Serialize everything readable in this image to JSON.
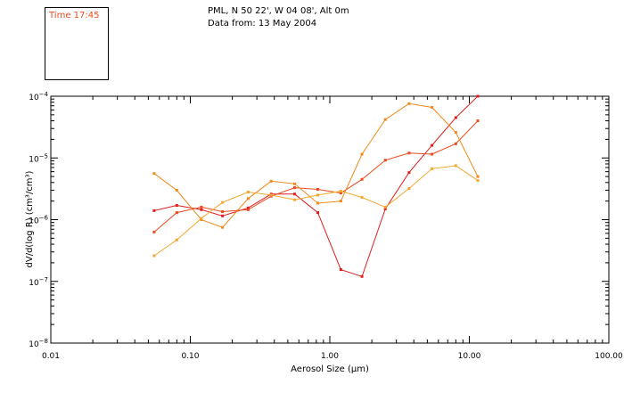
{
  "time_box": {
    "label": "Time 17:45",
    "color": "#e84a1a"
  },
  "header": {
    "line1": "PML, N 50 22', W 04 08', Alt 0m",
    "line2": "Data from: 13 May 2004"
  },
  "chart_data": {
    "type": "line",
    "xlabel": "Aerosol Size (μm)",
    "ylabel": "dV/d(log R)  (cm³/cm³)",
    "x_scale": "log",
    "y_scale": "log",
    "xlim": [
      0.01,
      100
    ],
    "ylim": [
      1e-08,
      0.0001
    ],
    "grid": false,
    "x_ticks": [
      {
        "value": 0.01,
        "label": "0.01"
      },
      {
        "value": 0.1,
        "label": "0.10"
      },
      {
        "value": 1,
        "label": "1.00"
      },
      {
        "value": 10,
        "label": "10.00"
      },
      {
        "value": 100,
        "label": "100.00"
      }
    ],
    "y_ticks": [
      {
        "value": 1e-08,
        "base": "10",
        "exp": "−8"
      },
      {
        "value": 1e-07,
        "base": "10",
        "exp": "−7"
      },
      {
        "value": 1e-06,
        "base": "10",
        "exp": "−6"
      },
      {
        "value": 1e-05,
        "base": "10",
        "exp": "−5"
      },
      {
        "value": 0.0001,
        "base": "10",
        "exp": "−4"
      }
    ],
    "series": [
      {
        "color": "#e01e1e",
        "points": [
          [
            0.055,
            1.4e-06
          ],
          [
            0.08,
            1.7e-06
          ],
          [
            0.12,
            1.45e-06
          ],
          [
            0.17,
            1.15e-06
          ],
          [
            0.26,
            1.55e-06
          ],
          [
            0.38,
            2.6e-06
          ],
          [
            0.56,
            2.6e-06
          ],
          [
            0.82,
            1.3e-06
          ],
          [
            1.2,
            1.55e-07
          ],
          [
            1.7,
            1.2e-07
          ],
          [
            2.5,
            1.5e-06
          ],
          [
            3.7,
            5.8e-06
          ],
          [
            5.4,
            1.6e-05
          ],
          [
            8,
            4.5e-05
          ],
          [
            11.5,
            0.0001
          ]
        ]
      },
      {
        "color": "#ec4a1c",
        "points": [
          [
            0.055,
            6.3e-07
          ],
          [
            0.08,
            1.3e-06
          ],
          [
            0.12,
            1.6e-06
          ],
          [
            0.17,
            1.35e-06
          ],
          [
            0.26,
            1.45e-06
          ],
          [
            0.38,
            2.4e-06
          ],
          [
            0.56,
            3.3e-06
          ],
          [
            0.82,
            3.1e-06
          ],
          [
            1.2,
            2.7e-06
          ],
          [
            1.7,
            4.5e-06
          ],
          [
            2.5,
            9.2e-06
          ],
          [
            3.7,
            1.2e-05
          ],
          [
            5.4,
            1.15e-05
          ],
          [
            8,
            1.7e-05
          ],
          [
            11.5,
            4e-05
          ]
        ]
      },
      {
        "color": "#f08a18",
        "points": [
          [
            0.055,
            5.6e-06
          ],
          [
            0.08,
            3e-06
          ],
          [
            0.12,
            1e-06
          ],
          [
            0.17,
            7.5e-07
          ],
          [
            0.26,
            2.2e-06
          ],
          [
            0.38,
            4.2e-06
          ],
          [
            0.56,
            3.8e-06
          ],
          [
            0.82,
            1.85e-06
          ],
          [
            1.2,
            2e-06
          ],
          [
            1.7,
            1.15e-05
          ],
          [
            2.5,
            4.2e-05
          ],
          [
            3.7,
            7.6e-05
          ],
          [
            5.4,
            6.6e-05
          ],
          [
            8,
            2.6e-05
          ],
          [
            11.5,
            5e-06
          ]
        ]
      },
      {
        "color": "#f2a830",
        "points": [
          [
            0.055,
            2.6e-07
          ],
          [
            0.08,
            4.7e-07
          ],
          [
            0.12,
            1.05e-06
          ],
          [
            0.17,
            1.9e-06
          ],
          [
            0.26,
            2.8e-06
          ],
          [
            0.38,
            2.5e-06
          ],
          [
            0.56,
            2.1e-06
          ],
          [
            0.82,
            2.5e-06
          ],
          [
            1.2,
            2.9e-06
          ],
          [
            1.7,
            2.3e-06
          ],
          [
            2.5,
            1.6e-06
          ],
          [
            3.7,
            3.2e-06
          ],
          [
            5.4,
            6.7e-06
          ],
          [
            8,
            7.5e-06
          ],
          [
            11.5,
            4.3e-06
          ]
        ]
      }
    ]
  }
}
